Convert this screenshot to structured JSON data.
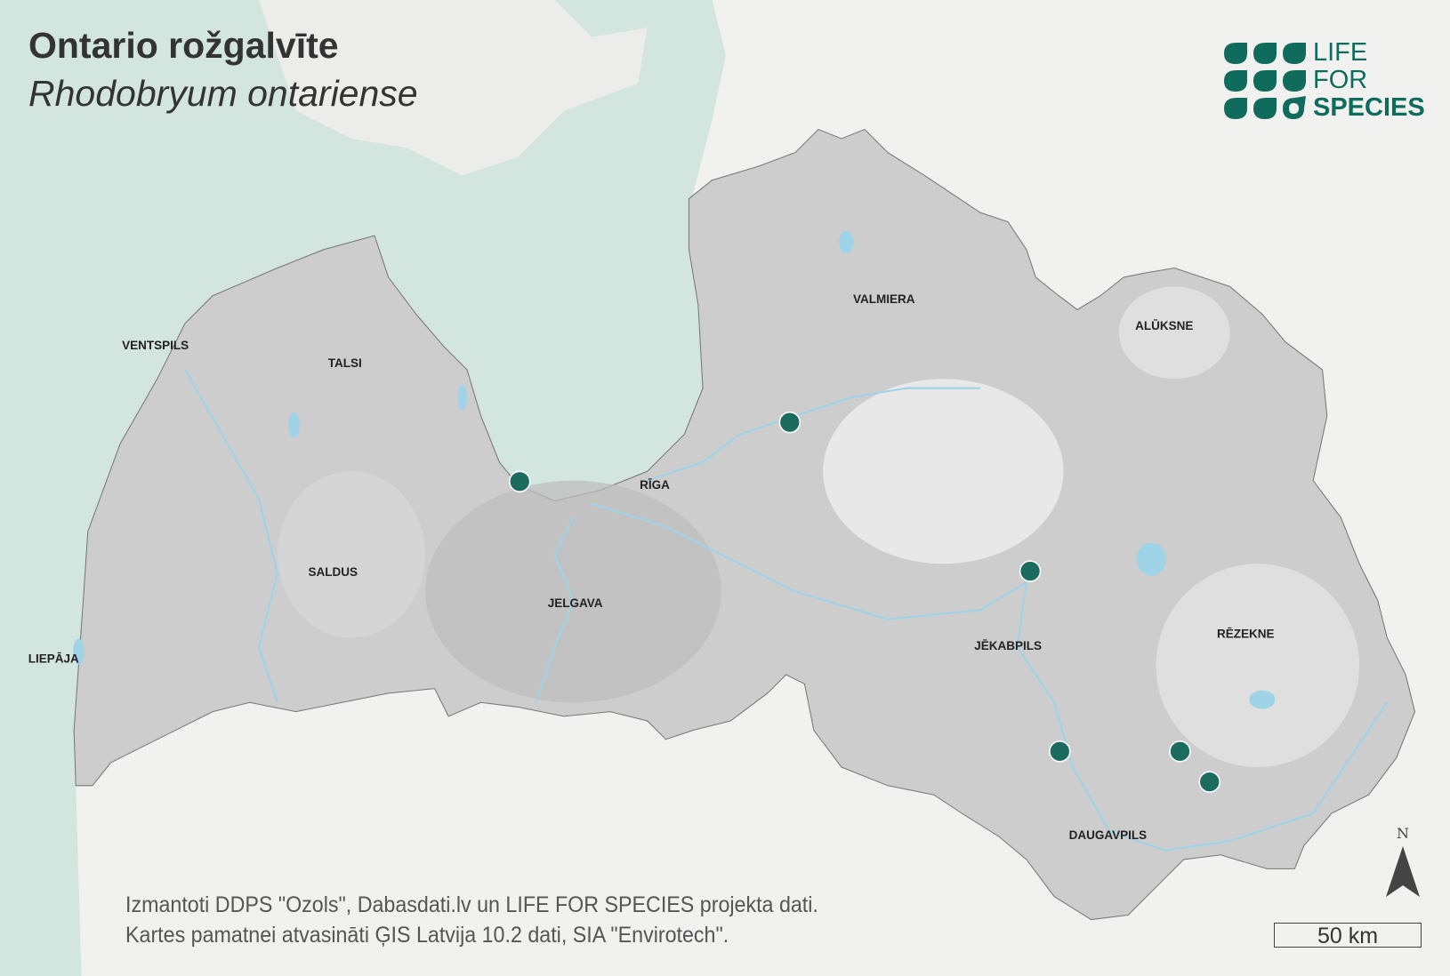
{
  "title": "Ontario rožgalvīte",
  "subtitle": "Rhodobryum ontariense",
  "credits": [
    "Izmantoti DDPS \"Ozols\", Dabasdati.lv un LIFE FOR SPECIES projekta dati.",
    "Kartes pamatnei atvasināti ĢIS Latvija 10.2 dati, SIA \"Envirotech\"."
  ],
  "logo": {
    "lines": [
      "LIFE",
      "FOR",
      "SPECIES"
    ],
    "color": "#0f6b5b"
  },
  "north_arrow": {
    "label": "N"
  },
  "scale_bar": {
    "label": "50 km"
  },
  "cities": [
    {
      "name": "VENTSPILS"
    },
    {
      "name": "TALSI"
    },
    {
      "name": "VALMIERA"
    },
    {
      "name": "ALŪKSNE"
    },
    {
      "name": "RĪGA"
    },
    {
      "name": "SALDUS"
    },
    {
      "name": "JELGAVA"
    },
    {
      "name": "JĒKABPILS"
    },
    {
      "name": "RĒZEKNE"
    },
    {
      "name": "LIEPĀJA"
    },
    {
      "name": "DAUGAVPILS"
    }
  ],
  "occurrence_count": 6,
  "colors": {
    "sea": "#d3e5df",
    "land": "#cfcfcf",
    "water": "#9fd3e8",
    "occurrence": "#1b6b5e"
  }
}
